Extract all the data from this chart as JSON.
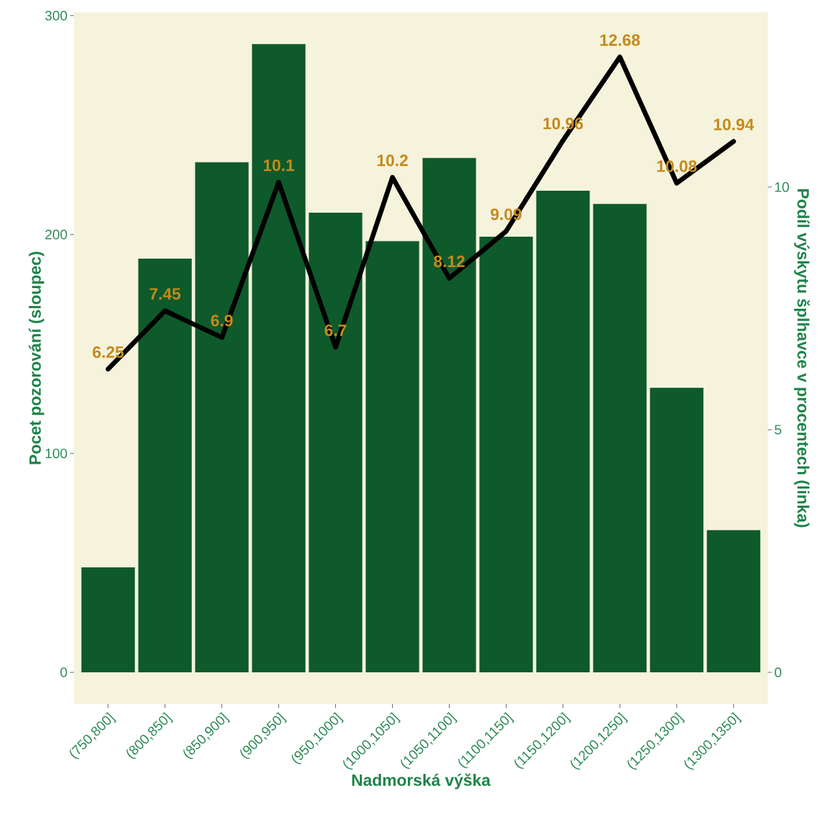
{
  "chart_data": {
    "type": "bar",
    "xlabel": "Nadmorská výška",
    "ylabel": "Pocet pozorování (sloupec)",
    "y2label": "Podíl výskytu šplhavce v procentech (linka)",
    "categories": [
      "(750,800]",
      "(800,850]",
      "(850,900]",
      "(900,950]",
      "(950,1000]",
      "(1000,1050]",
      "(1050,1100]",
      "(1100,1150]",
      "(1150,1200]",
      "(1200,1250]",
      "(1250,1300]",
      "(1300,1350]"
    ],
    "series": [
      {
        "color": "#0e5a2b",
        "values": [
          48,
          189,
          233,
          287,
          210,
          197,
          235,
          199,
          220,
          214,
          130,
          65
        ]
      },
      {
        "type": "line",
        "axis": "y2",
        "color": "#000000",
        "data_labels": true,
        "values": [
          6.25,
          7.45,
          6.9,
          10.1,
          6.7,
          10.2,
          8.12,
          9.09,
          10.96,
          12.68,
          10.08,
          10.94
        ]
      }
    ],
    "ylim": [
      -14.4,
      301.5
    ],
    "yticks": [
      0,
      100,
      200,
      300
    ],
    "y2lim": [
      -0.65,
      13.6
    ],
    "y2ticks": [
      0,
      5,
      10
    ]
  }
}
